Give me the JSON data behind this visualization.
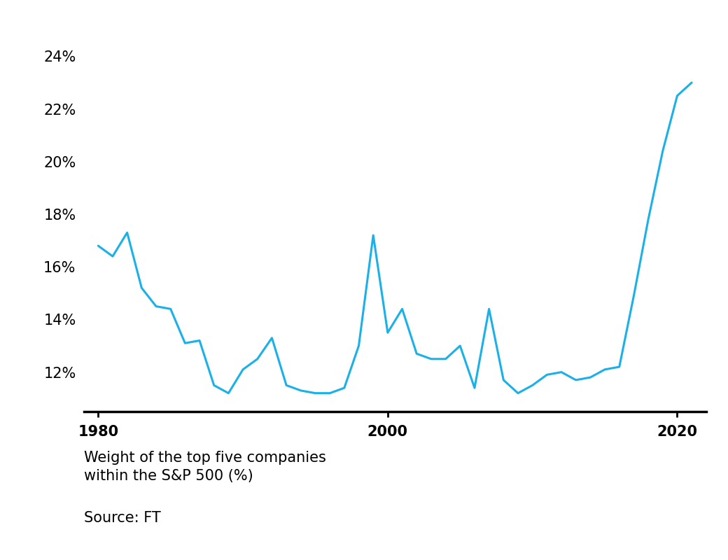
{
  "years": [
    1980,
    1981,
    1982,
    1983,
    1984,
    1985,
    1986,
    1987,
    1988,
    1989,
    1990,
    1991,
    1992,
    1993,
    1994,
    1995,
    1996,
    1997,
    1998,
    1999,
    2000,
    2001,
    2002,
    2003,
    2004,
    2005,
    2006,
    2007,
    2008,
    2009,
    2010,
    2011,
    2012,
    2013,
    2014,
    2015,
    2016,
    2017,
    2018,
    2019,
    2020,
    2021
  ],
  "values": [
    16.8,
    16.4,
    17.3,
    15.2,
    14.5,
    14.4,
    13.1,
    13.2,
    11.5,
    11.2,
    12.1,
    12.5,
    13.3,
    11.5,
    11.3,
    11.2,
    11.2,
    11.4,
    13.0,
    17.2,
    13.5,
    14.4,
    12.7,
    12.5,
    12.5,
    13.0,
    11.4,
    14.4,
    11.7,
    11.2,
    11.5,
    11.9,
    12.0,
    11.7,
    11.8,
    12.1,
    12.2,
    14.9,
    17.8,
    20.4,
    22.5,
    23.0
  ],
  "line_color": "#1ab0e8",
  "line_width": 2.2,
  "background_color": "#ffffff",
  "yticks": [
    12,
    14,
    16,
    18,
    20,
    22,
    24
  ],
  "xticks": [
    1980,
    2000,
    2020
  ],
  "ylim": [
    10.5,
    25.5
  ],
  "xlim": [
    1979,
    2022
  ],
  "ylabel_text": "Weight of the top five companies\nwithin the S&P 500 (%)",
  "source_text": "Source: FT",
  "ylabel_fontsize": 15,
  "source_fontsize": 15,
  "tick_fontsize": 15
}
